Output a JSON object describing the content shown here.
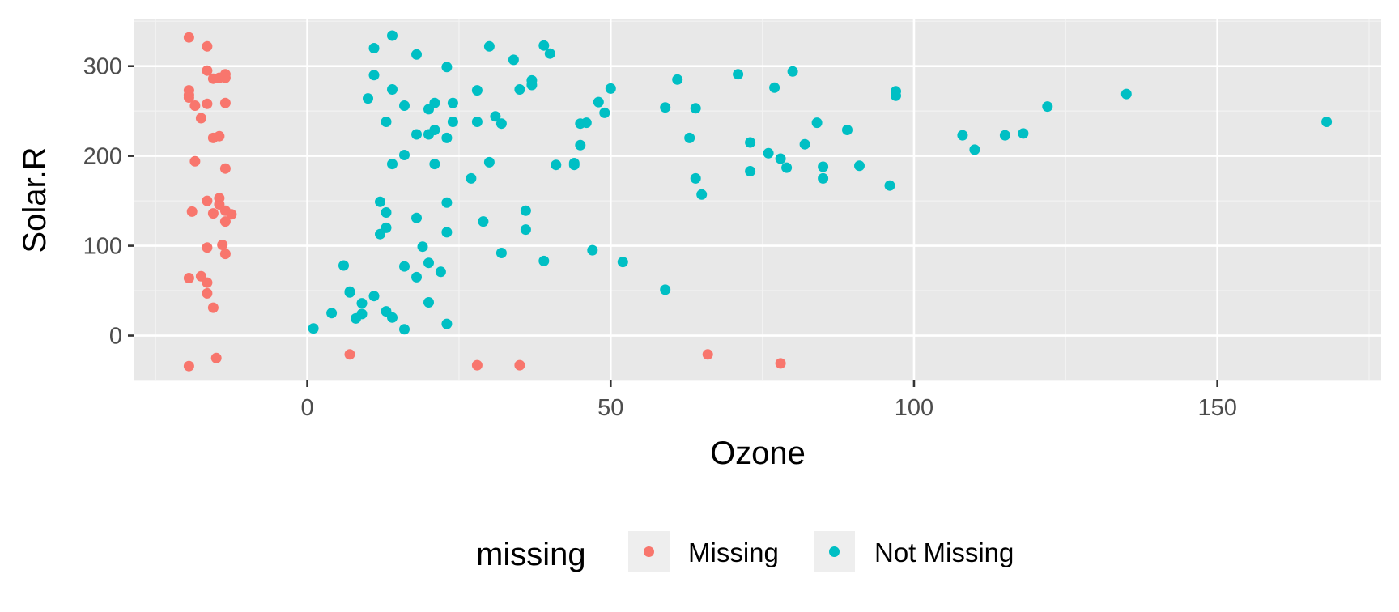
{
  "chart_data": {
    "type": "scatter",
    "xlabel": "Ozone",
    "ylabel": "Solar.R",
    "xlim": [
      -28.5,
      177
    ],
    "ylim": [
      -50,
      352
    ],
    "xticks": [
      0,
      50,
      100,
      150
    ],
    "yticks": [
      0,
      100,
      200,
      300
    ],
    "grid": true,
    "legend": {
      "title": "missing",
      "position": "bottom",
      "entries": [
        "Missing",
        "Not Missing"
      ]
    },
    "colors": {
      "panel": "#e8e8e8",
      "grid_major": "#ffffff",
      "grid_minor": "#f2f2f2",
      "tick": "#333333",
      "legend_key_bg": "#eeeeee"
    },
    "series": [
      {
        "name": "Missing",
        "color": "#f8766d",
        "x": [
          -19.5,
          -16.5,
          -19.5,
          -19.5,
          -18.5,
          -16.5,
          -14.5,
          -13.5,
          -19.5,
          -16.5,
          -15.5,
          -13.5,
          -17.5,
          -13.5,
          -15.5,
          -14.5,
          -18.5,
          -13.5,
          -16.5,
          -14.5,
          -14.5,
          -19,
          -15.5,
          -13.5,
          -12.5,
          -13.5,
          -16.5,
          -14,
          -13.5,
          -19.5,
          -17.5,
          -16.5,
          -16.5,
          -15.5,
          -19.5,
          -15,
          7,
          28,
          35,
          66,
          78
        ],
        "y": [
          332,
          322,
          273,
          268,
          256,
          295,
          287,
          287,
          265,
          258,
          286,
          291,
          242,
          259,
          220,
          222,
          194,
          186,
          150,
          153,
          146,
          138,
          136,
          139,
          135,
          127,
          98,
          101,
          91,
          64,
          66,
          59,
          47,
          31,
          -34,
          -25,
          -21,
          -33,
          -33,
          -21,
          -31
        ]
      },
      {
        "name": "Not Missing",
        "color": "#00bfc4",
        "x": [
          11,
          14,
          18,
          23,
          30,
          34,
          39,
          40,
          11,
          10,
          14,
          16,
          13,
          18,
          21,
          24,
          20,
          21,
          23,
          20,
          28,
          28,
          24,
          31,
          32,
          35,
          37,
          37,
          14,
          16,
          21,
          30,
          27,
          41,
          44,
          44,
          45,
          46,
          48,
          49,
          50,
          45,
          59,
          61,
          64,
          63,
          64,
          65,
          71,
          73,
          73,
          76,
          77,
          78,
          79,
          80,
          82,
          84,
          85,
          85,
          89,
          91,
          96,
          97,
          97,
          108,
          110,
          115,
          118,
          122,
          135,
          168,
          12,
          13,
          18,
          23,
          29,
          36,
          36,
          19,
          22,
          20,
          13,
          12,
          23,
          32,
          47,
          39,
          52,
          6,
          7,
          7,
          11,
          9,
          9,
          8,
          13,
          4,
          14,
          1,
          16,
          20,
          23,
          16,
          18,
          59
        ],
        "y": [
          320,
          334,
          313,
          299,
          322,
          307,
          323,
          314,
          290,
          264,
          274,
          256,
          238,
          224,
          259,
          259,
          252,
          229,
          220,
          224,
          273,
          238,
          238,
          244,
          236,
          274,
          284,
          279,
          191,
          201,
          191,
          193,
          175,
          190,
          192,
          190,
          236,
          237,
          260,
          248,
          275,
          212,
          254,
          285,
          253,
          220,
          175,
          157,
          291,
          215,
          183,
          203,
          276,
          197,
          187,
          294,
          213,
          237,
          188,
          175,
          229,
          189,
          167,
          267,
          272,
          223,
          207,
          223,
          225,
          255,
          269,
          238,
          149,
          137,
          131,
          148,
          127,
          139,
          118,
          99,
          71,
          81,
          120,
          113,
          115,
          92,
          95,
          83,
          82,
          78,
          49,
          48,
          44,
          36,
          24,
          19,
          27,
          25,
          20,
          8,
          7,
          37,
          13,
          77,
          65,
          51
        ]
      }
    ]
  }
}
